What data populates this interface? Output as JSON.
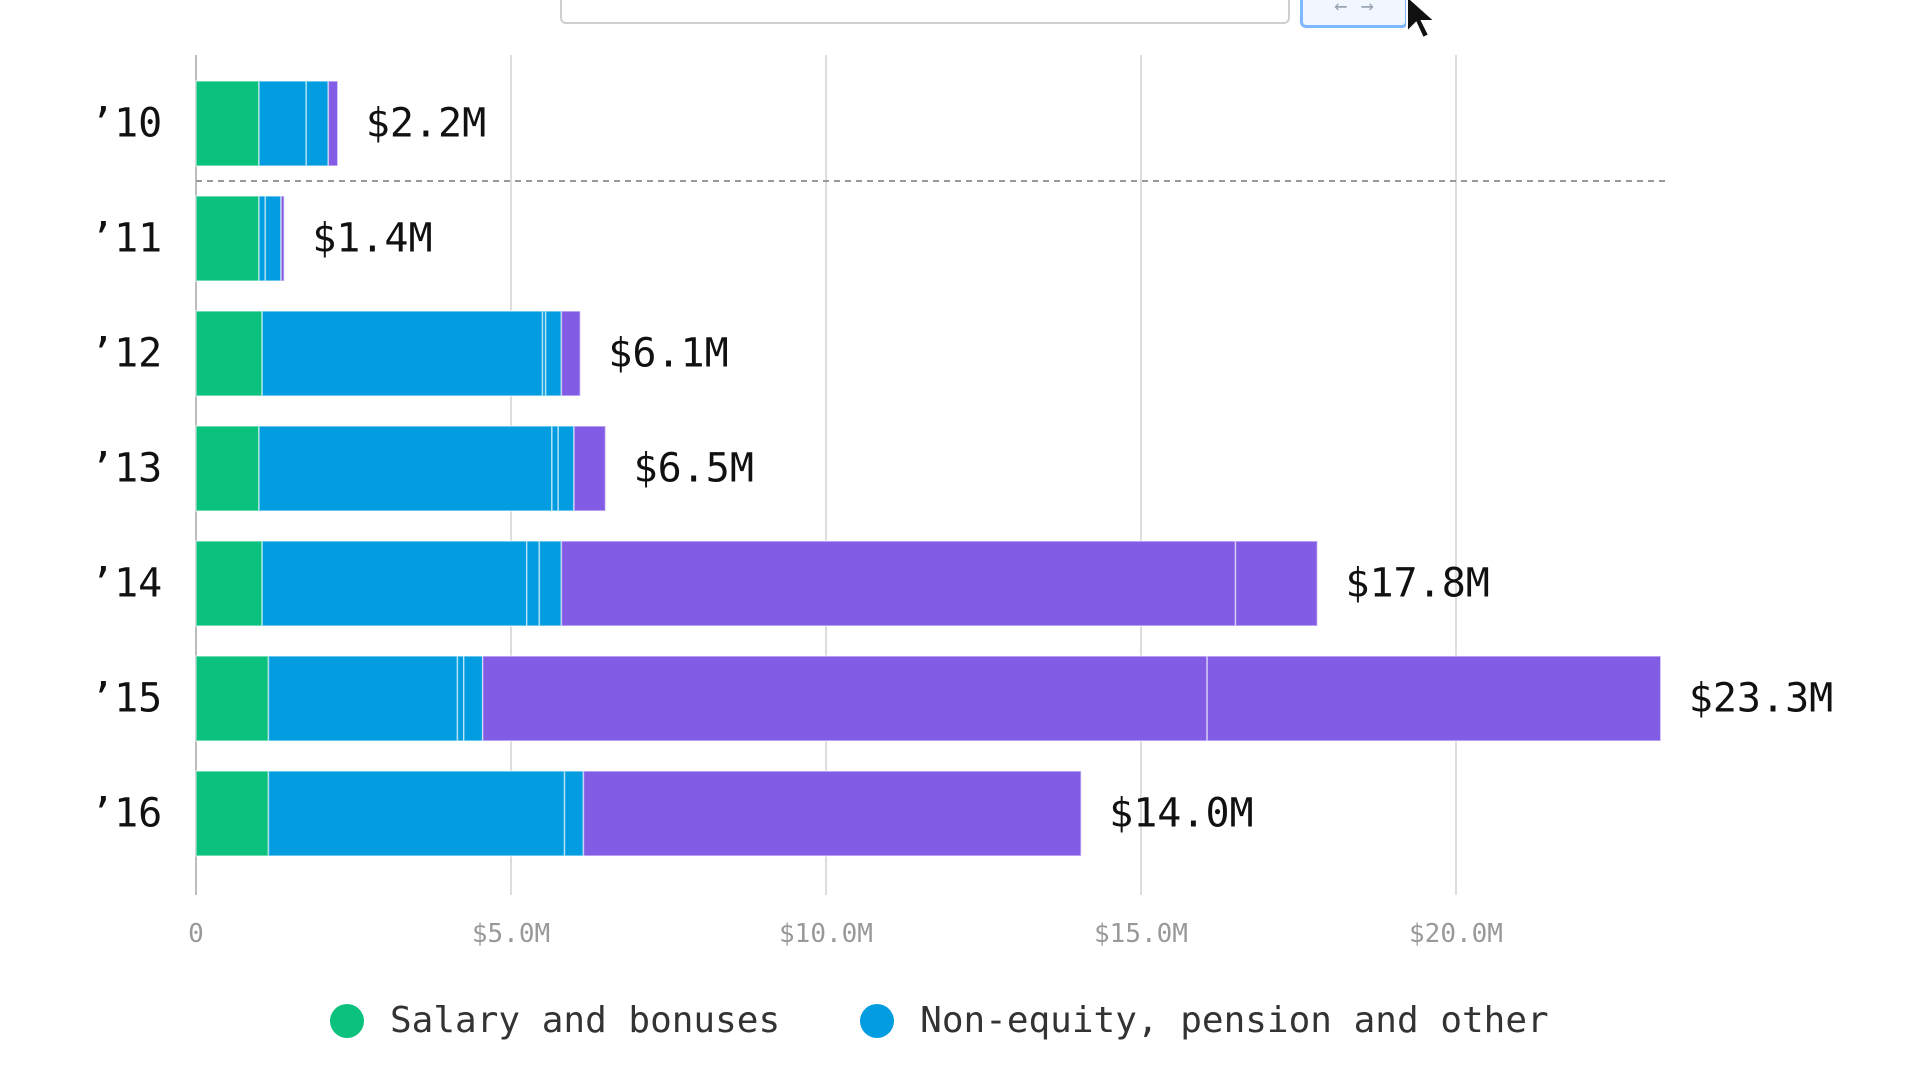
{
  "toolbar": {
    "arrows_label": "← →"
  },
  "chart_data": {
    "type": "bar",
    "orientation": "horizontal",
    "stacked": true,
    "categories": [
      "’10",
      "’11",
      "’12",
      "’13",
      "’14",
      "’15",
      "’16"
    ],
    "totals": [
      "$2.2M",
      "$1.4M",
      "$6.1M",
      "$6.5M",
      "$17.8M",
      "$23.3M",
      "$14.0M"
    ],
    "series": [
      {
        "name": "Salary and bonuses",
        "color": "#0ac27d",
        "segments": [
          [
            1.0
          ],
          [
            1.0
          ],
          [
            1.05
          ],
          [
            1.0
          ],
          [
            1.05
          ],
          [
            1.15
          ],
          [
            1.15
          ]
        ]
      },
      {
        "name": "Non-equity, pension and other",
        "color": "#029de0",
        "segments": [
          [
            0.75,
            0.35
          ],
          [
            0.1,
            0.25
          ],
          [
            4.45,
            0.05,
            0.25
          ],
          [
            4.65,
            0.1,
            0.25
          ],
          [
            4.2,
            0.2,
            0.35
          ],
          [
            3.0,
            0.1,
            0.3
          ],
          [
            4.7,
            0.3
          ]
        ]
      },
      {
        "color": "#835ce6",
        "segments": [
          [
            0.15
          ],
          [
            0.05
          ],
          [
            0.3
          ],
          [
            0.5
          ],
          [
            10.7,
            1.3
          ],
          [
            11.5,
            7.2
          ],
          [
            7.9
          ]
        ]
      }
    ],
    "xticks": [
      "0",
      "$5.0M",
      "$10.0M",
      "$15.0M",
      "$20.0M"
    ],
    "xlim": [
      0,
      23.3
    ],
    "grid": true,
    "legend_position": "bottom",
    "reference_line_after": "’10"
  }
}
